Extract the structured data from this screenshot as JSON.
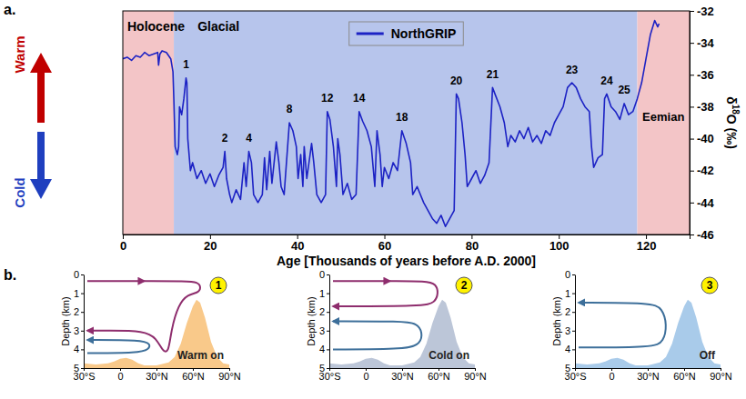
{
  "chart_data": {
    "type": "line",
    "panel_label": "a.",
    "x_label": "Age [Thousands of years before A.D. 2000]",
    "y_label": "δ18O (‰)",
    "legend": "top",
    "xlim": [
      0,
      130
    ],
    "xticks": [
      0,
      20,
      40,
      60,
      80,
      100,
      120
    ],
    "ylim": [
      -46,
      -32
    ],
    "yticks": [
      -46,
      -44,
      -42,
      -40,
      -38,
      -36,
      -34,
      -32
    ],
    "x": [
      0,
      1,
      2,
      3,
      4,
      5,
      6,
      7,
      8,
      8.2,
      8.5,
      9,
      10,
      11,
      11.5,
      11.7,
      12,
      12.5,
      12.8,
      13,
      13.5,
      14,
      14.5,
      14.7,
      14.9,
      15.5,
      16,
      17,
      18,
      19,
      20,
      21,
      22,
      23,
      23.4,
      23.8,
      24.5,
      25,
      26,
      27,
      27.8,
      28.3,
      28.9,
      29.5,
      30,
      31,
      32,
      32.5,
      33,
      33.7,
      34.2,
      35.2,
      35.8,
      36.3,
      37,
      38.2,
      39,
      39.8,
      40.2,
      40.8,
      41.3,
      41.6,
      42.2,
      43.3,
      43.8,
      44.5,
      45.5,
      46.5,
      46.9,
      47.5,
      48.3,
      49,
      49.3,
      49.8,
      50.5,
      51.5,
      52.5,
      53.5,
      54.2,
      55,
      56,
      57,
      57.8,
      58.3,
      59,
      59.5,
      60,
      61,
      62,
      63,
      64,
      65,
      66,
      66.5,
      67.5,
      69,
      70,
      71,
      72,
      73,
      74,
      75,
      76,
      76.5,
      77,
      77.8,
      78.5,
      79,
      80,
      81,
      82,
      83,
      84,
      84.8,
      85.5,
      86.5,
      87.5,
      88.3,
      89,
      90,
      91,
      92,
      93,
      94,
      95,
      96,
      97,
      98,
      99,
      100,
      101,
      102,
      103,
      104,
      105,
      106,
      107,
      107.5,
      108,
      109,
      110,
      110.5,
      111,
      112,
      113,
      114,
      115,
      116,
      117,
      118,
      119,
      120,
      121,
      122,
      122.7,
      123
    ],
    "series": [
      {
        "name": "NorthGRIP",
        "color": "#1c22c4",
        "values": [
          -35.0,
          -34.9,
          -35.1,
          -34.8,
          -34.9,
          -34.6,
          -34.8,
          -34.7,
          -34.6,
          -35.4,
          -34.7,
          -34.5,
          -34.6,
          -35.0,
          -35.8,
          -37.5,
          -40.5,
          -41.0,
          -40.5,
          -38.0,
          -38.5,
          -37.5,
          -36.2,
          -36.5,
          -40.0,
          -42.0,
          -41.5,
          -42.5,
          -42.0,
          -42.8,
          -42.2,
          -43.0,
          -42.3,
          -41.8,
          -40.8,
          -42.5,
          -43.5,
          -44.0,
          -43.2,
          -43.8,
          -41.5,
          -43.0,
          -40.8,
          -41.5,
          -43.5,
          -44.0,
          -43.5,
          -41.2,
          -43.2,
          -40.8,
          -42.8,
          -40.2,
          -41.5,
          -43.0,
          -43.5,
          -39.0,
          -39.5,
          -40.5,
          -42.5,
          -41.0,
          -43.0,
          -40.5,
          -42.5,
          -40.3,
          -41.5,
          -43.5,
          -44.0,
          -43.5,
          -38.3,
          -38.8,
          -40.5,
          -43.0,
          -40.0,
          -41.0,
          -43.5,
          -42.8,
          -43.8,
          -43.5,
          -38.3,
          -38.9,
          -39.5,
          -40.5,
          -43.0,
          -39.5,
          -41.0,
          -43.0,
          -41.8,
          -42.5,
          -41.5,
          -42.0,
          -39.5,
          -40.3,
          -41.5,
          -43.5,
          -43.0,
          -44.0,
          -44.5,
          -45.0,
          -45.3,
          -44.8,
          -45.5,
          -45.0,
          -44.5,
          -37.2,
          -37.5,
          -39.0,
          -41.0,
          -43.0,
          -42.5,
          -42.0,
          -42.8,
          -42.3,
          -41.5,
          -36.8,
          -37.3,
          -38.0,
          -39.0,
          -40.5,
          -39.8,
          -40.2,
          -39.5,
          -40.0,
          -39.3,
          -40.2,
          -39.8,
          -40.3,
          -39.5,
          -39.8,
          -39.0,
          -38.5,
          -38.0,
          -36.8,
          -36.5,
          -36.8,
          -37.5,
          -38.0,
          -38.3,
          -40.5,
          -41.8,
          -41.2,
          -41.0,
          -37.5,
          -37.2,
          -38.0,
          -38.3,
          -38.8,
          -37.8,
          -38.5,
          -38.3,
          -37.5,
          -36.5,
          -35.0,
          -33.5,
          -32.6,
          -33.0,
          -32.8
        ]
      }
    ],
    "regions": [
      {
        "label": "Holocene",
        "start": 0,
        "end": 11.7,
        "color": "#f3c5c7"
      },
      {
        "label": "Glacial",
        "start": 11.7,
        "end": 118,
        "color": "#b7c5ec"
      },
      {
        "label": "Eemian",
        "start": 118,
        "end": 130,
        "color": "#f3c5c7"
      }
    ],
    "annotations": [
      {
        "text": "1",
        "x": 14.5,
        "y": -35.6
      },
      {
        "text": "2",
        "x": 23.4,
        "y": -40.2
      },
      {
        "text": "4",
        "x": 28.9,
        "y": -40.2
      },
      {
        "text": "8",
        "x": 38.2,
        "y": -38.4
      },
      {
        "text": "12",
        "x": 46.9,
        "y": -37.7
      },
      {
        "text": "14",
        "x": 54.2,
        "y": -37.7
      },
      {
        "text": "18",
        "x": 64,
        "y": -38.9
      },
      {
        "text": "20",
        "x": 76.5,
        "y": -36.6
      },
      {
        "text": "21",
        "x": 84.8,
        "y": -36.2
      },
      {
        "text": "23",
        "x": 103,
        "y": -35.9
      },
      {
        "text": "24",
        "x": 111,
        "y": -36.6
      },
      {
        "text": "25",
        "x": 115,
        "y": -37.2
      }
    ],
    "direction_labels": [
      {
        "text": "Warm",
        "color": "#c00000"
      },
      {
        "text": "Cold",
        "color": "#1f3fbf"
      }
    ]
  },
  "diagram": {
    "panel_label": "b.",
    "y_label": "Depth (km)",
    "xlim": [
      -30,
      90
    ],
    "xticks": [
      {
        "value": -30,
        "label": "30°S"
      },
      0,
      {
        "value": 30,
        "label": "30°N"
      },
      {
        "value": 60,
        "label": "60°N"
      },
      {
        "value": 90,
        "label": "90°N"
      }
    ],
    "ylim": [
      0,
      5
    ],
    "yticks": [
      0,
      1,
      2,
      3,
      4,
      5
    ],
    "seafloor": {
      "lat": [
        -30,
        -20,
        -10,
        -5,
        0,
        5,
        10,
        15,
        20,
        30,
        40,
        45,
        50,
        55,
        60,
        63,
        66,
        70,
        75,
        80,
        85,
        90
      ],
      "depth": [
        4.75,
        4.8,
        4.75,
        4.65,
        4.5,
        4.45,
        4.55,
        4.75,
        4.85,
        4.85,
        4.7,
        4.4,
        3.7,
        2.6,
        1.7,
        1.35,
        1.5,
        2.3,
        3.6,
        4.4,
        4.75,
        4.8
      ]
    },
    "panels": [
      {
        "number": 1,
        "title": "Warm on",
        "color": "#f9c98a"
      },
      {
        "number": 2,
        "title": "Cold on",
        "color": "#bcc6d8"
      },
      {
        "number": 3,
        "title": "Off",
        "color": "#a9cbea"
      }
    ]
  }
}
